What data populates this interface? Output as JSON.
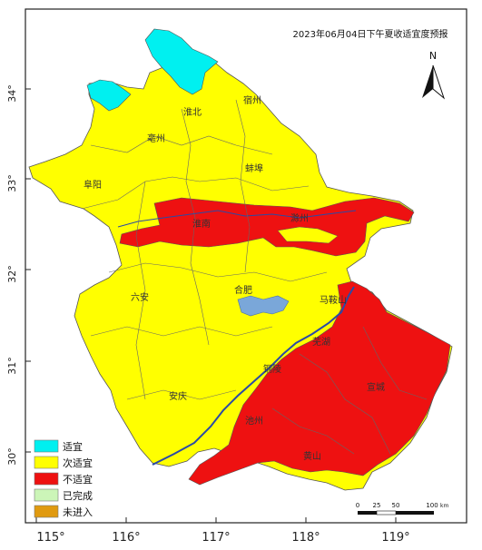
{
  "map": {
    "title": "2023年06月04日下午夏收适宜度预报",
    "north_label": "N",
    "lat_ticks": [
      "34°",
      "33°",
      "32°",
      "31°",
      "30°"
    ],
    "lon_ticks": [
      "115°",
      "116°",
      "117°",
      "118°",
      "119°"
    ],
    "scale": {
      "ticks": [
        "0",
        "25",
        "50",
        "100"
      ],
      "unit": "km"
    },
    "cities": [
      "宿州",
      "淮北",
      "亳州",
      "蚌埠",
      "阜阳",
      "淮南",
      "滁州",
      "六安",
      "合肥",
      "马鞍山",
      "芜湖",
      "铜陵",
      "宣城",
      "安庆",
      "池州",
      "黄山"
    ],
    "colors": {
      "suitable": "#00f0f0",
      "sub_suitable": "#ffff00",
      "unsuitable": "#ee1111",
      "finished": "#ccf5b8",
      "not_entered": "#e09a10",
      "water": "#7aa7d9",
      "river": "#2a4aa6"
    }
  },
  "legend": [
    {
      "label": "适宜",
      "color": "#00f0f0"
    },
    {
      "label": "次适宜",
      "color": "#ffff00"
    },
    {
      "label": "不适宜",
      "color": "#ee1111"
    },
    {
      "label": "已完成",
      "color": "#ccf5b8"
    },
    {
      "label": "未进入",
      "color": "#e09a10"
    }
  ]
}
